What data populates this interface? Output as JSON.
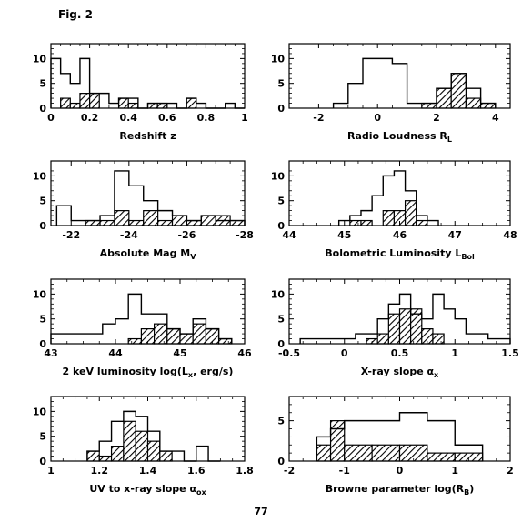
{
  "figure_label": "Fig. 2",
  "page_number": "77",
  "chart_data": [
    {
      "type": "histogram",
      "xlabel": {
        "main": "Redshift z",
        "sub": ""
      },
      "xlim": [
        0,
        1
      ],
      "ylim": [
        0,
        13
      ],
      "xticks": [
        "0",
        "0.2",
        "0.4",
        "0.6",
        "0.8",
        "1"
      ],
      "xtick_values": [
        0,
        0.2,
        0.4,
        0.6,
        0.8,
        1
      ],
      "yticks": [
        "0",
        "5",
        "10"
      ],
      "ytick_values": [
        0,
        5,
        10
      ],
      "bin_edges": [
        0,
        0.05,
        0.1,
        0.15,
        0.2,
        0.25,
        0.3,
        0.35,
        0.4,
        0.45,
        0.5,
        0.55,
        0.6,
        0.65,
        0.7,
        0.75,
        0.8,
        0.85,
        0.9,
        0.95,
        1
      ],
      "open_values": [
        10,
        7,
        5,
        10,
        3,
        3,
        1,
        2,
        2,
        0,
        1,
        1,
        1,
        0,
        2,
        1,
        0,
        0,
        1,
        0
      ],
      "hatched_values": [
        0,
        2,
        1,
        3,
        3,
        0,
        0,
        2,
        1,
        0,
        1,
        1,
        0,
        0,
        2,
        0,
        0,
        0,
        0,
        0
      ]
    },
    {
      "type": "histogram",
      "xlabel": {
        "main": "Radio Loudness R",
        "sub": "L"
      },
      "xlim": [
        -3,
        4.5
      ],
      "ylim": [
        0,
        13
      ],
      "xticks": [
        "-2",
        "0",
        "2",
        "4"
      ],
      "xtick_values": [
        -2,
        0,
        2,
        4
      ],
      "yticks": [
        "0",
        "5",
        "10"
      ],
      "ytick_values": [
        0,
        5,
        10
      ],
      "bin_edges": [
        -1.5,
        -1,
        -0.5,
        0,
        0.5,
        1,
        1.5,
        2,
        2.5,
        3,
        3.5,
        4
      ],
      "open_values": [
        1,
        5,
        10,
        10,
        9,
        1,
        1,
        4,
        7,
        4,
        1
      ],
      "hatched_values": [
        0,
        0,
        0,
        0,
        0,
        0,
        1,
        4,
        7,
        2,
        1
      ]
    },
    {
      "type": "histogram",
      "xlabel": {
        "main": "Absolute Mag M",
        "sub": "V"
      },
      "xlim": [
        -21.3,
        -28
      ],
      "ylim": [
        0,
        13
      ],
      "xticks": [
        "-22",
        "-24",
        "-26",
        "-28"
      ],
      "xtick_values": [
        -22,
        -24,
        -26,
        -28
      ],
      "yticks": [
        "0",
        "5",
        "10"
      ],
      "ytick_values": [
        0,
        5,
        10
      ],
      "bin_edges": [
        -21.5,
        -22.0,
        -22.5,
        -23.0,
        -23.5,
        -24.0,
        -24.5,
        -25.0,
        -25.5,
        -26.0,
        -26.5,
        -27.0,
        -27.5,
        -28.0
      ],
      "open_values": [
        4,
        1,
        1,
        2,
        11,
        8,
        5,
        3,
        2,
        1,
        2,
        1,
        1
      ],
      "hatched_values": [
        0,
        0,
        1,
        1,
        3,
        1,
        3,
        1,
        2,
        1,
        2,
        2,
        1
      ]
    },
    {
      "type": "histogram",
      "xlabel": {
        "main": "Bolometric Luminosity L",
        "sub": "Bol"
      },
      "xlim": [
        44,
        48
      ],
      "ylim": [
        0,
        13
      ],
      "xticks": [
        "44",
        "45",
        "46",
        "47",
        "48"
      ],
      "xtick_values": [
        44,
        45,
        46,
        47,
        48
      ],
      "yticks": [
        "0",
        "5",
        "10"
      ],
      "ytick_values": [
        0,
        5,
        10
      ],
      "bin_edges": [
        44.9,
        45.1,
        45.3,
        45.5,
        45.7,
        45.9,
        46.1,
        46.3,
        46.5,
        46.7
      ],
      "open_values": [
        1,
        2,
        3,
        6,
        10,
        11,
        7,
        2,
        1
      ],
      "hatched_values": [
        0,
        1,
        1,
        0,
        3,
        3,
        5,
        1,
        0
      ]
    },
    {
      "type": "histogram",
      "xlabel": {
        "main": "2 keV luminosity log(L",
        "sub": "x",
        "tail": ", erg/s)"
      },
      "xlim": [
        43,
        46
      ],
      "ylim": [
        0,
        13
      ],
      "xticks": [
        "43",
        "44",
        "45",
        "46"
      ],
      "xtick_values": [
        43,
        44,
        45,
        46
      ],
      "yticks": [
        "0",
        "5",
        "10"
      ],
      "ytick_values": [
        0,
        5,
        10
      ],
      "bin_edges": [
        43,
        43.8,
        44.0,
        44.2,
        44.4,
        44.6,
        44.8,
        45.0,
        45.2,
        45.4,
        45.6,
        45.8
      ],
      "open_values": [
        2,
        4,
        5,
        10,
        6,
        6,
        3,
        2,
        5,
        3,
        1
      ],
      "hatched_values": [
        0,
        0,
        0,
        1,
        3,
        4,
        3,
        2,
        4,
        3,
        1
      ]
    },
    {
      "type": "histogram",
      "xlabel": {
        "main": "X-ray slope α",
        "sub": "x"
      },
      "xlim": [
        -0.5,
        1.5
      ],
      "ylim": [
        0,
        13
      ],
      "xticks": [
        "-0.5",
        "0",
        "0.5",
        "1",
        "1.5"
      ],
      "xtick_values": [
        -0.5,
        0,
        0.5,
        1,
        1.5
      ],
      "yticks": [
        "0",
        "5",
        "10"
      ],
      "ytick_values": [
        0,
        5,
        10
      ],
      "bin_edges": [
        -0.4,
        0,
        0.1,
        0.2,
        0.3,
        0.4,
        0.5,
        0.6,
        0.7,
        0.8,
        0.9,
        1.0,
        1.1,
        1.2,
        1.3,
        1.4,
        1.5
      ],
      "open_values": [
        1,
        1,
        2,
        2,
        5,
        8,
        10,
        6,
        5,
        10,
        7,
        5,
        2,
        2,
        1,
        1
      ],
      "hatched_values": [
        0,
        0,
        0,
        1,
        2,
        6,
        7,
        7,
        3,
        2,
        0,
        0,
        0,
        0,
        0,
        0
      ]
    },
    {
      "type": "histogram",
      "xlabel": {
        "main": "UV to x-ray slope α",
        "sub": "ox"
      },
      "xlim": [
        1,
        1.8
      ],
      "ylim": [
        0,
        13
      ],
      "xticks": [
        "1",
        "1.2",
        "1.4",
        "1.6",
        "1.8"
      ],
      "xtick_values": [
        1,
        1.2,
        1.4,
        1.6,
        1.8
      ],
      "yticks": [
        "0",
        "5",
        "10"
      ],
      "ytick_values": [
        0,
        5,
        10
      ],
      "bin_edges": [
        1.15,
        1.2,
        1.25,
        1.3,
        1.35,
        1.4,
        1.45,
        1.5,
        1.55,
        1.6,
        1.65,
        1.7
      ],
      "open_values": [
        2,
        4,
        8,
        10,
        9,
        6,
        2,
        2,
        0,
        3,
        0
      ],
      "hatched_values": [
        2,
        1,
        3,
        8,
        6,
        4,
        2,
        0,
        0,
        0,
        0
      ]
    },
    {
      "type": "histogram",
      "xlabel": {
        "main": "Browne parameter log(R",
        "sub": "B",
        "tail": ")"
      },
      "xlim": [
        -2,
        2
      ],
      "ylim": [
        0,
        8
      ],
      "xticks": [
        "-2",
        "-1",
        "0",
        "1",
        "2"
      ],
      "xtick_values": [
        -2,
        -1,
        0,
        1,
        2
      ],
      "yticks": [
        "0",
        "5"
      ],
      "ytick_values": [
        0,
        5
      ],
      "bin_edges": [
        -1.5,
        -1.25,
        -1.0,
        -0.5,
        0.0,
        0.5,
        1.0,
        1.5
      ],
      "open_values": [
        3,
        4,
        5,
        5,
        6,
        5,
        2
      ],
      "hatched_values": [
        2,
        5,
        2,
        2,
        2,
        1,
        1
      ]
    }
  ]
}
